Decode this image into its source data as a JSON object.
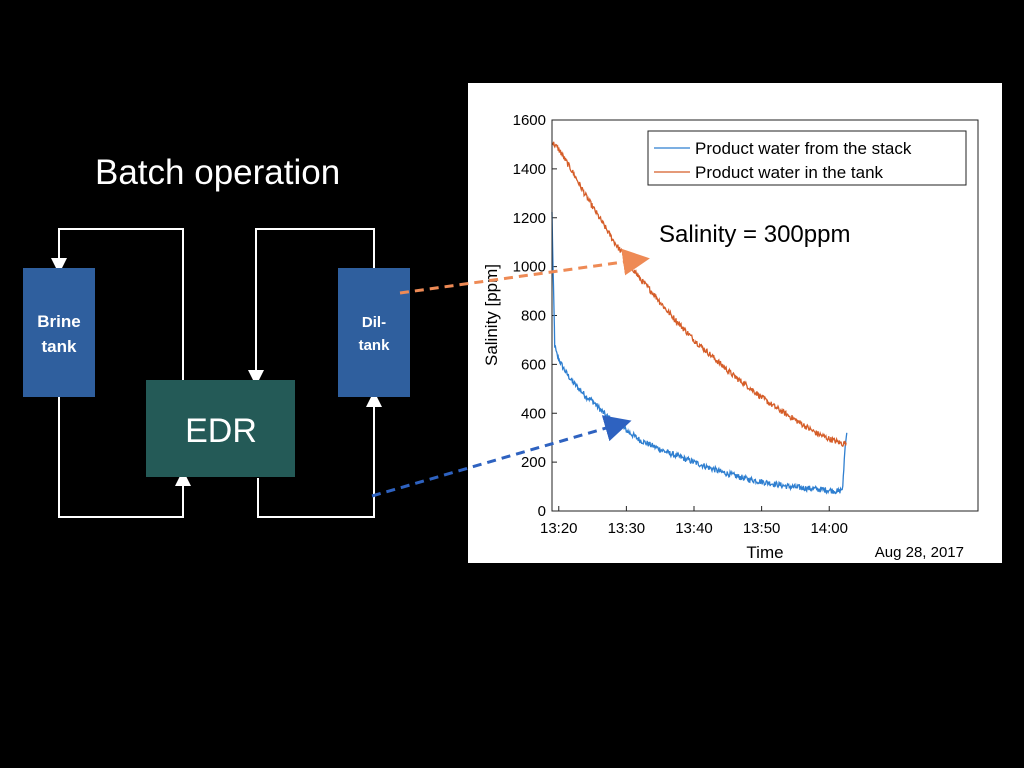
{
  "slide": {
    "title": "Batch operation"
  },
  "diagram": {
    "brine_tank_line1": "Brine",
    "brine_tank_line2": "tank",
    "dil_tank_line1": "Dil-",
    "dil_tank_line2": "tank",
    "edr_label": "EDR",
    "colors": {
      "tank": "#2f5f9e",
      "edr": "#245a57",
      "line": "#ffffff",
      "orange_arrow": "#ee8a55",
      "blue_arrow": "#2e62c0"
    }
  },
  "chart_data": {
    "type": "line",
    "ylabel": "Salinity [ppm]",
    "xlabel": "Time",
    "date_label": "Aug 28, 2017",
    "ylim": [
      0,
      1600
    ],
    "yticks": [
      "0",
      "200",
      "400",
      "600",
      "800",
      "1000",
      "1200",
      "1400",
      "1600"
    ],
    "xlim_minutes": [
      -1,
      62
    ],
    "xticks": [
      {
        "minutes": 0,
        "label": "13:20"
      },
      {
        "minutes": 10,
        "label": "13:30"
      },
      {
        "minutes": 20,
        "label": "13:40"
      },
      {
        "minutes": 30,
        "label": "13:50"
      },
      {
        "minutes": 40,
        "label": "14:00"
      }
    ],
    "annotation": "Salinity = 300ppm",
    "series": [
      {
        "name": "Product water from the stack",
        "color": "#2f7fd0",
        "x": [
          -1,
          -0.85,
          -0.7,
          -0.6,
          -0.4,
          0,
          1,
          2,
          3,
          4,
          5,
          6,
          7,
          8,
          10,
          12,
          14,
          16,
          18,
          20,
          22,
          24,
          26,
          28,
          30,
          32,
          34,
          36,
          38,
          40,
          41.5,
          42,
          42.3,
          42.6
        ],
        "values": [
          1220,
          1000,
          820,
          680,
          650,
          620,
          570,
          530,
          500,
          470,
          450,
          420,
          390,
          370,
          330,
          290,
          265,
          240,
          220,
          200,
          180,
          160,
          145,
          130,
          120,
          110,
          100,
          95,
          90,
          85,
          80,
          95,
          250,
          320
        ]
      },
      {
        "name": "Product water in the tank",
        "color": "#d55d28",
        "x": [
          -1,
          0,
          2,
          4,
          6,
          8,
          10,
          12,
          14,
          16,
          18,
          20,
          22,
          24,
          26,
          28,
          30,
          32,
          34,
          36,
          38,
          40,
          42,
          42.5
        ],
        "values": [
          1510,
          1480,
          1390,
          1290,
          1200,
          1110,
          1030,
          950,
          890,
          820,
          760,
          700,
          650,
          600,
          550,
          510,
          465,
          425,
          390,
          355,
          320,
          295,
          275,
          280
        ]
      }
    ]
  }
}
